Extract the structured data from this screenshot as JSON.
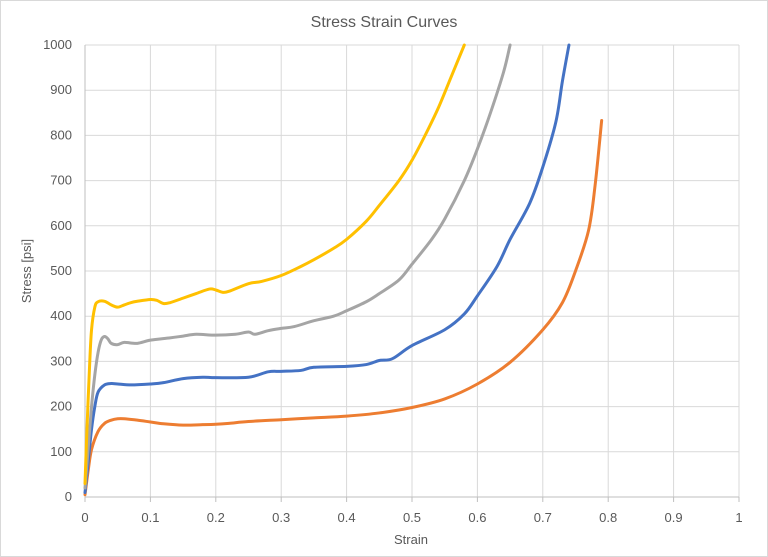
{
  "chart_data": {
    "type": "line",
    "title": "Stress Strain Curves",
    "xlabel": "Strain",
    "ylabel": "Stress [psi]",
    "xlim": [
      0,
      1
    ],
    "ylim": [
      0,
      1000
    ],
    "xticks": [
      "0",
      "0.1",
      "0.2",
      "0.3",
      "0.4",
      "0.5",
      "0.6",
      "0.7",
      "0.8",
      "0.9",
      "1"
    ],
    "yticks": [
      "0",
      "100",
      "200",
      "300",
      "400",
      "500",
      "600",
      "700",
      "800",
      "900",
      "1000"
    ],
    "grid": true,
    "legend": "none",
    "series": [
      {
        "color": "#ED7D31",
        "points": [
          [
            0,
            5
          ],
          [
            0.005,
            60
          ],
          [
            0.01,
            105
          ],
          [
            0.02,
            145
          ],
          [
            0.03,
            163
          ],
          [
            0.04,
            170
          ],
          [
            0.05,
            173
          ],
          [
            0.06,
            173
          ],
          [
            0.08,
            170
          ],
          [
            0.1,
            166
          ],
          [
            0.12,
            162
          ],
          [
            0.15,
            159
          ],
          [
            0.18,
            160
          ],
          [
            0.2,
            161
          ],
          [
            0.22,
            163
          ],
          [
            0.25,
            167
          ],
          [
            0.3,
            171
          ],
          [
            0.35,
            175
          ],
          [
            0.4,
            179
          ],
          [
            0.45,
            186
          ],
          [
            0.5,
            198
          ],
          [
            0.55,
            217
          ],
          [
            0.6,
            250
          ],
          [
            0.65,
            298
          ],
          [
            0.7,
            370
          ],
          [
            0.73,
            430
          ],
          [
            0.75,
            500
          ],
          [
            0.77,
            590
          ],
          [
            0.78,
            690
          ],
          [
            0.79,
            833
          ]
        ]
      },
      {
        "color": "#4472C4",
        "points": [
          [
            0,
            10
          ],
          [
            0.005,
            80
          ],
          [
            0.01,
            150
          ],
          [
            0.015,
            200
          ],
          [
            0.02,
            232
          ],
          [
            0.03,
            248
          ],
          [
            0.04,
            251
          ],
          [
            0.05,
            250
          ],
          [
            0.07,
            248
          ],
          [
            0.1,
            250
          ],
          [
            0.12,
            253
          ],
          [
            0.15,
            262
          ],
          [
            0.18,
            265
          ],
          [
            0.2,
            264
          ],
          [
            0.25,
            265
          ],
          [
            0.28,
            277
          ],
          [
            0.3,
            278
          ],
          [
            0.33,
            280
          ],
          [
            0.35,
            287
          ],
          [
            0.4,
            289
          ],
          [
            0.43,
            293
          ],
          [
            0.45,
            302
          ],
          [
            0.47,
            306
          ],
          [
            0.5,
            335
          ],
          [
            0.55,
            370
          ],
          [
            0.58,
            405
          ],
          [
            0.6,
            445
          ],
          [
            0.63,
            510
          ],
          [
            0.65,
            570
          ],
          [
            0.68,
            650
          ],
          [
            0.7,
            730
          ],
          [
            0.72,
            830
          ],
          [
            0.73,
            920
          ],
          [
            0.74,
            1000
          ]
        ]
      },
      {
        "color": "#A5A5A5",
        "points": [
          [
            0,
            20
          ],
          [
            0.005,
            110
          ],
          [
            0.01,
            200
          ],
          [
            0.015,
            270
          ],
          [
            0.02,
            320
          ],
          [
            0.025,
            348
          ],
          [
            0.03,
            355
          ],
          [
            0.035,
            350
          ],
          [
            0.04,
            340
          ],
          [
            0.05,
            337
          ],
          [
            0.06,
            342
          ],
          [
            0.08,
            340
          ],
          [
            0.1,
            347
          ],
          [
            0.13,
            352
          ],
          [
            0.15,
            356
          ],
          [
            0.17,
            360
          ],
          [
            0.2,
            358
          ],
          [
            0.23,
            360
          ],
          [
            0.25,
            365
          ],
          [
            0.26,
            360
          ],
          [
            0.28,
            368
          ],
          [
            0.3,
            373
          ],
          [
            0.32,
            377
          ],
          [
            0.35,
            390
          ],
          [
            0.38,
            400
          ],
          [
            0.4,
            412
          ],
          [
            0.43,
            432
          ],
          [
            0.45,
            450
          ],
          [
            0.48,
            480
          ],
          [
            0.5,
            515
          ],
          [
            0.53,
            570
          ],
          [
            0.55,
            615
          ],
          [
            0.58,
            700
          ],
          [
            0.6,
            770
          ],
          [
            0.62,
            850
          ],
          [
            0.64,
            940
          ],
          [
            0.65,
            1000
          ]
        ]
      },
      {
        "color": "#FFC000",
        "points": [
          [
            0,
            30
          ],
          [
            0.003,
            150
          ],
          [
            0.007,
            290
          ],
          [
            0.01,
            370
          ],
          [
            0.015,
            420
          ],
          [
            0.02,
            432
          ],
          [
            0.03,
            433
          ],
          [
            0.04,
            425
          ],
          [
            0.05,
            420
          ],
          [
            0.06,
            425
          ],
          [
            0.07,
            430
          ],
          [
            0.08,
            433
          ],
          [
            0.1,
            437
          ],
          [
            0.11,
            435
          ],
          [
            0.12,
            428
          ],
          [
            0.13,
            430
          ],
          [
            0.15,
            440
          ],
          [
            0.17,
            450
          ],
          [
            0.19,
            460
          ],
          [
            0.2,
            458
          ],
          [
            0.21,
            453
          ],
          [
            0.22,
            455
          ],
          [
            0.25,
            472
          ],
          [
            0.27,
            477
          ],
          [
            0.3,
            490
          ],
          [
            0.33,
            510
          ],
          [
            0.35,
            525
          ],
          [
            0.38,
            550
          ],
          [
            0.4,
            570
          ],
          [
            0.43,
            610
          ],
          [
            0.45,
            645
          ],
          [
            0.48,
            700
          ],
          [
            0.5,
            745
          ],
          [
            0.52,
            800
          ],
          [
            0.54,
            860
          ],
          [
            0.56,
            930
          ],
          [
            0.58,
            1000
          ]
        ]
      }
    ]
  }
}
